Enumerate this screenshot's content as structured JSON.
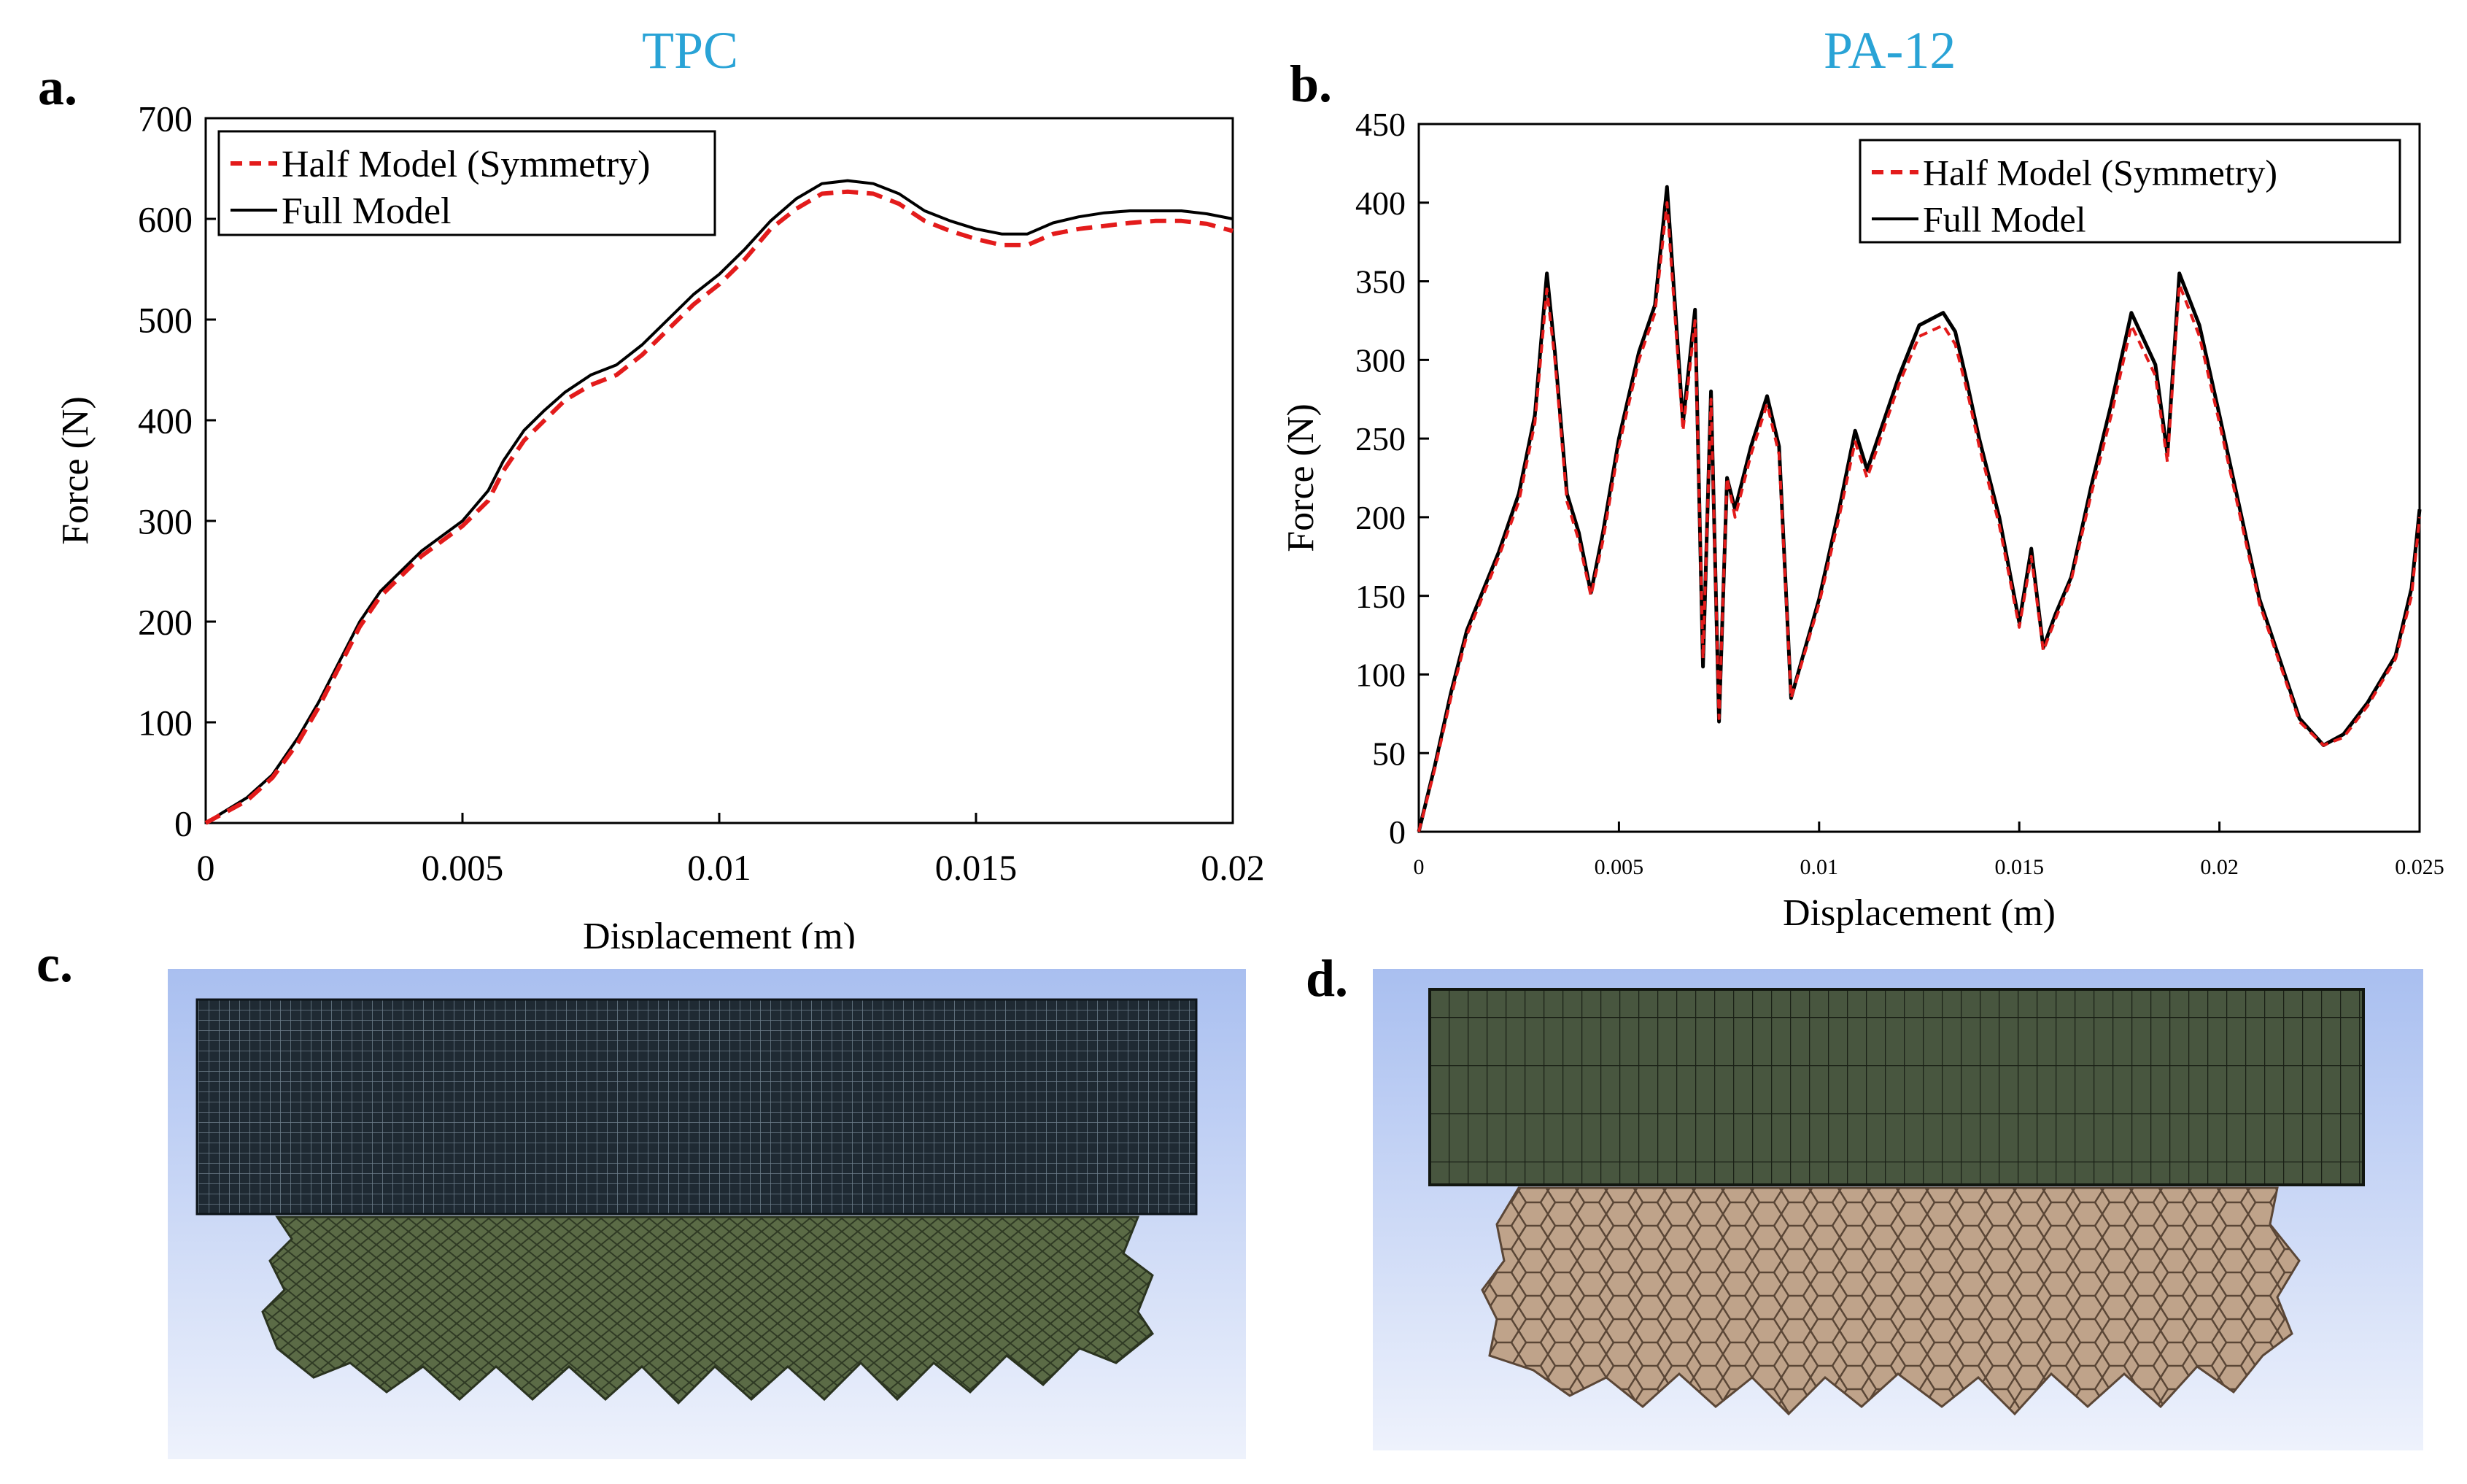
{
  "panels": {
    "a": {
      "letter": "a."
    },
    "b": {
      "letter": "b."
    },
    "c": {
      "letter": "c."
    },
    "d": {
      "letter": "d."
    }
  },
  "colors": {
    "title": "#29a3d6",
    "half_model": "#e31b1b",
    "full_model": "#000000",
    "sim_bg_top": "#a9bff0",
    "sim_bg_bottom": "#eef2fc",
    "tpc_platen": "#1f2a33",
    "tpc_lattice": "#5b6b46",
    "pa_platen": "#48563f",
    "pa_lattice": "#bfa38a"
  },
  "chart_data": [
    {
      "type": "line",
      "title": "TPC",
      "xlabel": "Displacement (m)",
      "ylabel": "Force (N)",
      "xlim": [
        0,
        0.02
      ],
      "ylim": [
        0,
        700
      ],
      "xticks": [
        "0",
        "0.005",
        "0.01",
        "0.015",
        "0.02"
      ],
      "xtick_values": [
        0,
        0.005,
        0.01,
        0.015,
        0.02
      ],
      "yticks": [
        "0",
        "100",
        "200",
        "300",
        "400",
        "500",
        "600",
        "700"
      ],
      "ytick_values": [
        0,
        100,
        200,
        300,
        400,
        500,
        600,
        700
      ],
      "legend": [
        "Half Model (Symmetry)",
        "Full Model"
      ],
      "series": [
        {
          "name": "Half Model (Symmetry)",
          "x": [
            0,
            0.0008,
            0.0013,
            0.0018,
            0.0022,
            0.0026,
            0.003,
            0.0034,
            0.0038,
            0.0042,
            0.0046,
            0.005,
            0.0055,
            0.0058,
            0.0062,
            0.0066,
            0.007,
            0.0075,
            0.008,
            0.0085,
            0.009,
            0.0095,
            0.01,
            0.0105,
            0.011,
            0.0115,
            0.012,
            0.0125,
            0.013,
            0.0135,
            0.014,
            0.0145,
            0.015,
            0.0155,
            0.016,
            0.0165,
            0.017,
            0.0175,
            0.018,
            0.0185,
            0.019,
            0.0195,
            0.02
          ],
          "values": [
            0,
            22,
            45,
            80,
            115,
            155,
            195,
            225,
            245,
            265,
            280,
            295,
            320,
            350,
            380,
            400,
            420,
            435,
            445,
            465,
            490,
            515,
            535,
            560,
            590,
            610,
            625,
            627,
            625,
            615,
            598,
            588,
            580,
            574,
            574,
            585,
            590,
            593,
            596,
            598,
            598,
            595,
            588
          ]
        },
        {
          "name": "Full Model",
          "x": [
            0,
            0.0008,
            0.0013,
            0.0018,
            0.0022,
            0.0026,
            0.003,
            0.0034,
            0.0038,
            0.0042,
            0.0046,
            0.005,
            0.0055,
            0.0058,
            0.0062,
            0.0066,
            0.007,
            0.0075,
            0.008,
            0.0085,
            0.009,
            0.0095,
            0.01,
            0.0105,
            0.011,
            0.0115,
            0.012,
            0.0125,
            0.013,
            0.0135,
            0.014,
            0.0145,
            0.015,
            0.0155,
            0.016,
            0.0165,
            0.017,
            0.0175,
            0.018,
            0.0185,
            0.019,
            0.0195,
            0.02
          ],
          "values": [
            0,
            25,
            48,
            85,
            120,
            160,
            200,
            230,
            250,
            270,
            285,
            300,
            330,
            360,
            390,
            410,
            428,
            445,
            455,
            475,
            500,
            525,
            545,
            570,
            598,
            620,
            635,
            638,
            635,
            625,
            608,
            598,
            590,
            585,
            585,
            596,
            602,
            606,
            608,
            608,
            608,
            605,
            600
          ]
        }
      ]
    },
    {
      "type": "line",
      "title": "PA-12",
      "xlabel": "Displacement  (m)",
      "ylabel": "Force (N)",
      "xlim": [
        0,
        0.025
      ],
      "ylim": [
        0,
        450
      ],
      "xticks": [
        "0",
        "0.005",
        "0.01",
        "0.015",
        "0.02",
        "0.025"
      ],
      "xtick_values": [
        0,
        0.005,
        0.01,
        0.015,
        0.02,
        0.025
      ],
      "yticks": [
        "0",
        "50",
        "100",
        "150",
        "200",
        "250",
        "300",
        "350",
        "400",
        "450"
      ],
      "ytick_values": [
        0,
        50,
        100,
        150,
        200,
        250,
        300,
        350,
        400,
        450
      ],
      "legend": [
        "Half Model (Symmetry)",
        "Full Model"
      ],
      "series": [
        {
          "name": "Half Model (Symmetry)",
          "x": [
            0,
            0.0004,
            0.0008,
            0.0012,
            0.0016,
            0.002,
            0.0025,
            0.0029,
            0.0032,
            0.0034,
            0.0037,
            0.004,
            0.0043,
            0.0046,
            0.005,
            0.0055,
            0.0059,
            0.0062,
            0.0066,
            0.0069,
            0.0071,
            0.0073,
            0.0075,
            0.0077,
            0.0079,
            0.0083,
            0.0087,
            0.009,
            0.0093,
            0.0096,
            0.01,
            0.0105,
            0.0109,
            0.0112,
            0.0116,
            0.012,
            0.0125,
            0.0131,
            0.0134,
            0.0137,
            0.014,
            0.0145,
            0.015,
            0.0153,
            0.0156,
            0.0159,
            0.0163,
            0.0168,
            0.0173,
            0.0178,
            0.0184,
            0.0187,
            0.019,
            0.0195,
            0.02,
            0.021,
            0.022,
            0.0226,
            0.0231,
            0.0237,
            0.0244,
            0.0248,
            0.025
          ],
          "values": [
            0,
            40,
            85,
            125,
            150,
            175,
            210,
            260,
            345,
            300,
            210,
            185,
            150,
            185,
            245,
            300,
            330,
            400,
            255,
            325,
            110,
            275,
            72,
            225,
            200,
            240,
            272,
            240,
            85,
            110,
            145,
            200,
            248,
            225,
            255,
            285,
            315,
            322,
            310,
            280,
            245,
            195,
            130,
            175,
            115,
            135,
            160,
            215,
            265,
            322,
            290,
            235,
            348,
            315,
            260,
            145,
            70,
            55,
            60,
            80,
            110,
            150,
            200
          ]
        },
        {
          "name": "Full Model",
          "x": [
            0,
            0.0004,
            0.0008,
            0.0012,
            0.0016,
            0.002,
            0.0025,
            0.0029,
            0.0032,
            0.0034,
            0.0037,
            0.004,
            0.0043,
            0.0046,
            0.005,
            0.0055,
            0.0059,
            0.0062,
            0.0066,
            0.0069,
            0.0071,
            0.0073,
            0.0075,
            0.0077,
            0.0079,
            0.0083,
            0.0087,
            0.009,
            0.0093,
            0.0096,
            0.01,
            0.0105,
            0.0109,
            0.0112,
            0.0116,
            0.012,
            0.0125,
            0.0131,
            0.0134,
            0.0137,
            0.014,
            0.0145,
            0.015,
            0.0153,
            0.0156,
            0.0159,
            0.0163,
            0.0168,
            0.0173,
            0.0178,
            0.0184,
            0.0187,
            0.019,
            0.0195,
            0.02,
            0.021,
            0.022,
            0.0226,
            0.0231,
            0.0237,
            0.0244,
            0.0248,
            0.025
          ],
          "values": [
            0,
            42,
            88,
            128,
            153,
            178,
            215,
            265,
            355,
            305,
            215,
            190,
            152,
            190,
            250,
            305,
            335,
            410,
            260,
            332,
            105,
            280,
            70,
            225,
            205,
            245,
            277,
            245,
            85,
            112,
            148,
            205,
            255,
            230,
            260,
            290,
            322,
            330,
            318,
            285,
            250,
            200,
            133,
            180,
            117,
            138,
            162,
            220,
            272,
            330,
            297,
            240,
            355,
            322,
            265,
            148,
            72,
            55,
            62,
            82,
            112,
            155,
            205
          ]
        }
      ]
    }
  ]
}
